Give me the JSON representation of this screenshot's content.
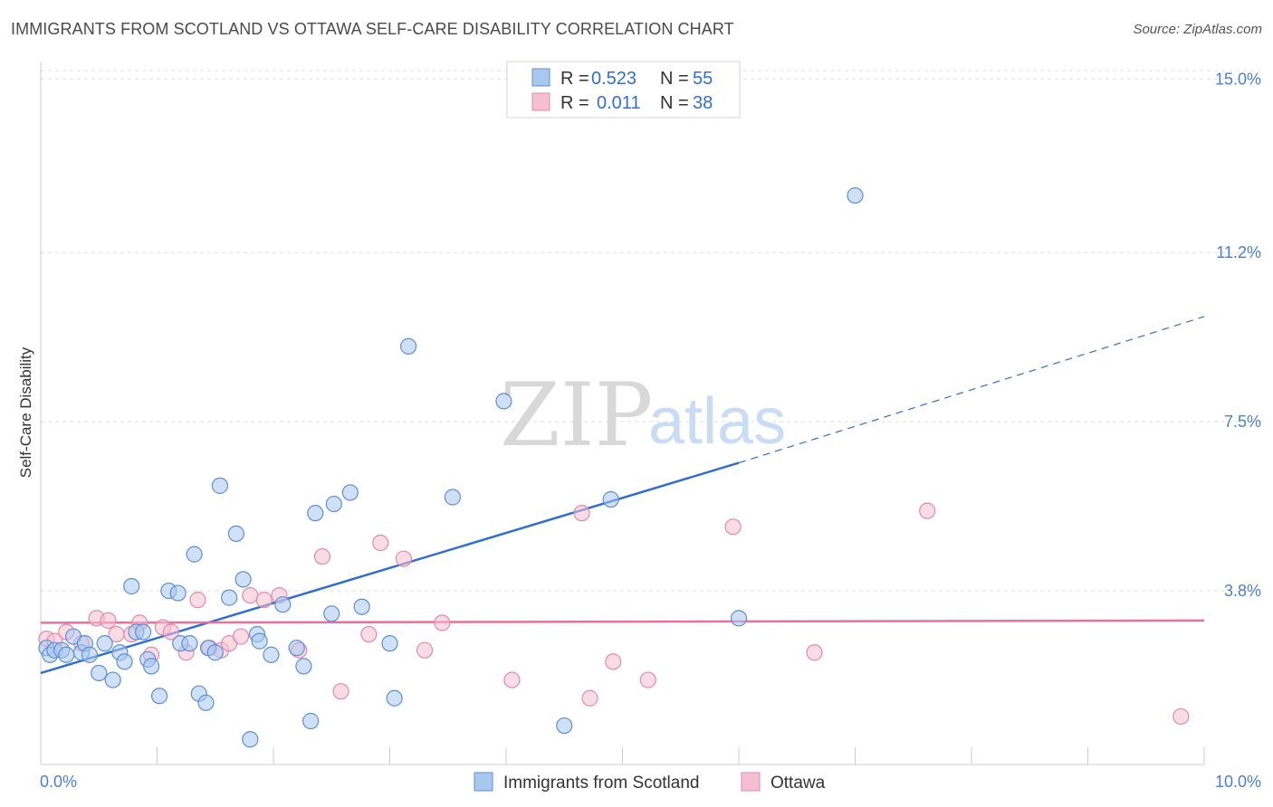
{
  "title": "IMMIGRANTS FROM SCOTLAND VS OTTAWA SELF-CARE DISABILITY CORRELATION CHART",
  "source": "Source: ZipAtlas.com",
  "watermark": {
    "part1": "ZIP",
    "part2": "atlas"
  },
  "colors": {
    "blue_fill": "#a9c8f0",
    "blue_stroke": "#5b8fd6",
    "blue_line": "#2f6fd1",
    "pink_fill": "#f6bfd0",
    "pink_stroke": "#e38aa8",
    "pink_line": "#e8709a",
    "grid": "#dddddd",
    "axis_text": "#4a7fd0"
  },
  "legend": {
    "rows": [
      {
        "r_label": "R =",
        "r_value": "0.523",
        "n_label": "N =",
        "n_value": "55"
      },
      {
        "r_label": "R =",
        "r_value": "0.011",
        "n_label": "N =",
        "n_value": "38"
      }
    ]
  },
  "chart_data": {
    "type": "scatter",
    "title": "IMMIGRANTS FROM SCOTLAND VS OTTAWA SELF-CARE DISABILITY CORRELATION CHART",
    "xlabel": "",
    "ylabel": "Self-Care Disability",
    "xlim": [
      0,
      10
    ],
    "ylim": [
      0,
      15.5
    ],
    "x_tick_labels": [
      "0.0%",
      "10.0%"
    ],
    "y_ticks": [
      3.8,
      7.5,
      11.2,
      15.0
    ],
    "y_tick_labels": [
      "3.8%",
      "7.5%",
      "11.2%",
      "15.0%"
    ],
    "series": [
      {
        "name": "Immigrants from Scotland",
        "color": "blue",
        "trend": {
          "x0": 0.0,
          "y0": 2.0,
          "x1": 6.0,
          "y1": 6.6,
          "dash_x1": 10.0,
          "dash_y1": 9.8
        },
        "points": [
          [
            0.05,
            2.55
          ],
          [
            0.08,
            2.4
          ],
          [
            0.12,
            2.5
          ],
          [
            0.18,
            2.5
          ],
          [
            0.22,
            2.4
          ],
          [
            0.28,
            2.8
          ],
          [
            0.35,
            2.45
          ],
          [
            0.38,
            2.65
          ],
          [
            0.42,
            2.4
          ],
          [
            0.5,
            2.0
          ],
          [
            0.55,
            2.65
          ],
          [
            0.62,
            1.85
          ],
          [
            0.68,
            2.45
          ],
          [
            0.72,
            2.25
          ],
          [
            0.78,
            3.9
          ],
          [
            0.82,
            2.9
          ],
          [
            0.88,
            2.9
          ],
          [
            0.92,
            2.3
          ],
          [
            0.95,
            2.15
          ],
          [
            1.02,
            1.5
          ],
          [
            1.1,
            3.8
          ],
          [
            1.18,
            3.75
          ],
          [
            1.2,
            2.65
          ],
          [
            1.28,
            2.65
          ],
          [
            1.32,
            4.6
          ],
          [
            1.36,
            1.55
          ],
          [
            1.42,
            1.35
          ],
          [
            1.44,
            2.55
          ],
          [
            1.5,
            2.45
          ],
          [
            1.54,
            6.1
          ],
          [
            1.62,
            3.65
          ],
          [
            1.68,
            5.05
          ],
          [
            1.74,
            4.05
          ],
          [
            1.8,
            0.55
          ],
          [
            1.86,
            2.85
          ],
          [
            1.88,
            2.7
          ],
          [
            1.98,
            2.4
          ],
          [
            2.08,
            3.5
          ],
          [
            2.2,
            2.55
          ],
          [
            2.26,
            2.15
          ],
          [
            2.32,
            0.95
          ],
          [
            2.36,
            5.5
          ],
          [
            2.5,
            3.3
          ],
          [
            2.52,
            5.7
          ],
          [
            2.66,
            5.95
          ],
          [
            2.76,
            3.45
          ],
          [
            3.0,
            2.65
          ],
          [
            3.04,
            1.45
          ],
          [
            3.16,
            9.15
          ],
          [
            3.54,
            5.85
          ],
          [
            3.98,
            7.95
          ],
          [
            4.5,
            0.85
          ],
          [
            4.9,
            5.8
          ],
          [
            6.0,
            3.2
          ],
          [
            7.0,
            12.45
          ]
        ]
      },
      {
        "name": "Ottawa",
        "color": "pink",
        "trend": {
          "x0": 0.0,
          "y0": 3.1,
          "x1": 10.0,
          "y1": 3.15
        },
        "points": [
          [
            0.05,
            2.75
          ],
          [
            0.12,
            2.7
          ],
          [
            0.22,
            2.9
          ],
          [
            0.35,
            2.65
          ],
          [
            0.48,
            3.2
          ],
          [
            0.58,
            3.15
          ],
          [
            0.65,
            2.85
          ],
          [
            0.78,
            2.85
          ],
          [
            0.85,
            3.1
          ],
          [
            0.95,
            2.4
          ],
          [
            1.05,
            3.0
          ],
          [
            1.12,
            2.9
          ],
          [
            1.25,
            2.45
          ],
          [
            1.35,
            3.6
          ],
          [
            1.45,
            2.55
          ],
          [
            1.55,
            2.5
          ],
          [
            1.62,
            2.65
          ],
          [
            1.72,
            2.8
          ],
          [
            1.8,
            3.7
          ],
          [
            1.92,
            3.6
          ],
          [
            2.05,
            3.7
          ],
          [
            2.22,
            2.5
          ],
          [
            2.42,
            4.55
          ],
          [
            2.58,
            1.6
          ],
          [
            2.82,
            2.85
          ],
          [
            2.92,
            4.85
          ],
          [
            3.12,
            4.5
          ],
          [
            3.3,
            2.5
          ],
          [
            3.45,
            3.1
          ],
          [
            4.05,
            1.85
          ],
          [
            4.65,
            5.5
          ],
          [
            4.72,
            1.45
          ],
          [
            4.92,
            2.25
          ],
          [
            5.22,
            1.85
          ],
          [
            5.95,
            5.2
          ],
          [
            6.65,
            2.45
          ],
          [
            7.62,
            5.55
          ],
          [
            9.8,
            1.05
          ]
        ]
      }
    ]
  }
}
